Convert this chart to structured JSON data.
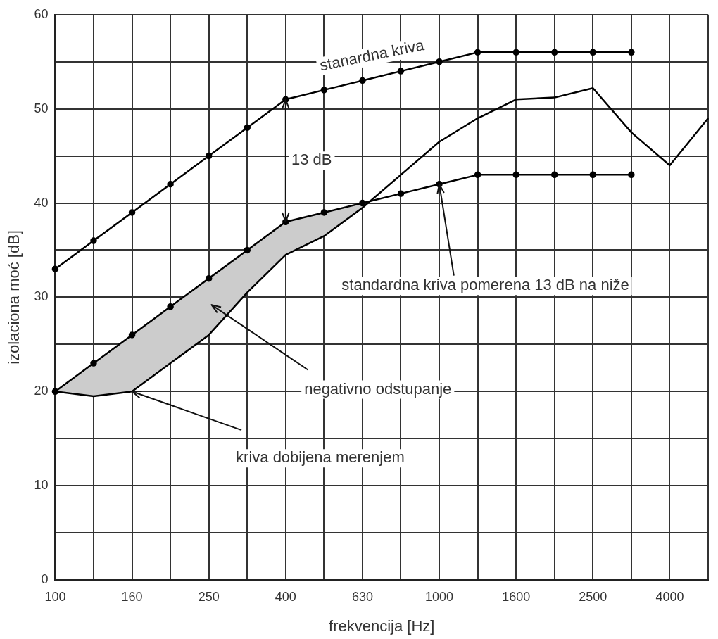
{
  "chart_data": {
    "type": "line",
    "xlabel": "frekvencija [Hz]",
    "ylabel": "izolaciona moć [dB]",
    "categories": [
      "100",
      null,
      "160",
      null,
      "250",
      null,
      "400",
      null,
      "630",
      null,
      "1000",
      null,
      "1600",
      null,
      "2500",
      null,
      "4000",
      null
    ],
    "ylim": [
      0,
      60
    ],
    "yticks": [
      0,
      {
        "value": 5,
        "label": null
      },
      10,
      {
        "value": 15,
        "label": null
      },
      20,
      {
        "value": 25,
        "label": null
      },
      30,
      {
        "value": 35,
        "label": null
      },
      40,
      {
        "value": 45,
        "label": null
      },
      50,
      {
        "value": 55,
        "label": null
      },
      60
    ],
    "grid": true,
    "legend": false,
    "series": [
      {
        "color": "#000000",
        "marker": "circle",
        "values": [
          33,
          36,
          39,
          42,
          45,
          48,
          51,
          52,
          53,
          54,
          55,
          56,
          56,
          56,
          56,
          56,
          null,
          null
        ]
      },
      {
        "color": "#000000",
        "marker": "circle",
        "values": [
          20,
          23,
          26,
          29,
          32,
          35,
          38,
          39,
          40,
          41,
          42,
          43,
          43,
          43,
          43,
          43,
          null,
          null
        ],
        "lower": [
          20,
          19.5,
          20,
          23,
          26,
          30.5,
          34.5,
          36.5,
          39.5,
          null,
          null,
          null,
          null,
          null,
          null,
          null,
          null,
          null
        ],
        "upper": [
          20,
          23,
          26,
          29,
          32,
          35,
          38,
          39,
          40,
          null,
          null,
          null,
          null,
          null,
          null,
          null,
          null,
          null
        ]
      },
      {
        "color": "#000000",
        "marker": "none",
        "values": [
          20,
          19.5,
          20,
          23,
          26,
          30.5,
          34.5,
          36.5,
          39.5,
          43,
          46.5,
          49,
          51,
          51.2,
          52.2,
          47.5,
          44,
          49
        ]
      }
    ],
    "annotations": [
      "stanardna kriva",
      "13 dB",
      {
        "text": "standardna kriva pomerena 13 dB na niže",
        "x": "1000",
        "y": 42
      },
      "negativno odstupanje",
      {
        "text": "kriva dobijena merenjem",
        "x": "160",
        "y": 20
      }
    ]
  }
}
